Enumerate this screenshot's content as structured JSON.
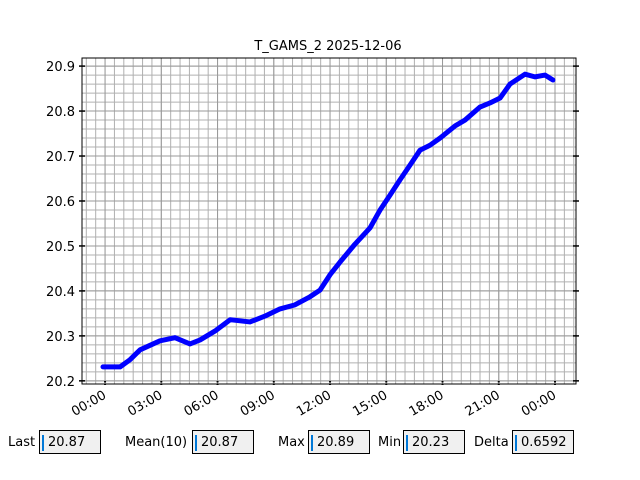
{
  "chart_data": {
    "type": "line",
    "title": "T_GAMS_2 2025-12-06",
    "x": [
      -0.11,
      0.8,
      1.33,
      1.87,
      2.93,
      3.73,
      4.53,
      5.07,
      5.87,
      6.67,
      7.73,
      8.53,
      9.33,
      10.13,
      10.93,
      11.47,
      12.0,
      12.53,
      13.33,
      14.13,
      14.67,
      15.2,
      15.73,
      16.27,
      16.8,
      17.33,
      17.87,
      18.67,
      19.2,
      20.0,
      20.53,
      21.07,
      21.6,
      22.4,
      22.93,
      23.47,
      23.89
    ],
    "series": [
      {
        "name": "T_GAMS_2",
        "color": "#0000ff",
        "values": [
          20.231,
          20.231,
          20.247,
          20.269,
          20.289,
          20.296,
          20.282,
          20.291,
          20.311,
          20.336,
          20.331,
          20.344,
          20.36,
          20.369,
          20.387,
          20.402,
          20.436,
          20.464,
          20.504,
          20.54,
          20.58,
          20.613,
          20.647,
          20.68,
          20.713,
          20.724,
          20.74,
          20.767,
          20.78,
          20.809,
          20.818,
          20.829,
          20.86,
          20.882,
          20.876,
          20.88,
          20.869
        ]
      }
    ],
    "xlim": [
      -1.23,
      25.12
    ],
    "xticks": [
      {
        "value": 0,
        "label": "00:00"
      },
      {
        "value": 3,
        "label": "03:00"
      },
      {
        "value": 6,
        "label": "06:00"
      },
      {
        "value": 9,
        "label": "09:00"
      },
      {
        "value": 12,
        "label": "12:00"
      },
      {
        "value": 15,
        "label": "15:00"
      },
      {
        "value": 18,
        "label": "18:00"
      },
      {
        "value": 21,
        "label": "21:00"
      },
      {
        "value": 24,
        "label": "00:00"
      }
    ],
    "ylim": [
      20.193,
      20.918
    ],
    "yticks": [
      20.2,
      20.3,
      20.4,
      20.5,
      20.6,
      20.7,
      20.8,
      20.9
    ],
    "grid": true
  },
  "fields": [
    {
      "label": "Last",
      "value": "20.87"
    },
    {
      "label": "Mean(10)",
      "value": "20.87"
    },
    {
      "label": "Max",
      "value": "20.89"
    },
    {
      "label": "Min",
      "value": "20.23"
    },
    {
      "label": "Delta",
      "value": "0.6592"
    }
  ]
}
